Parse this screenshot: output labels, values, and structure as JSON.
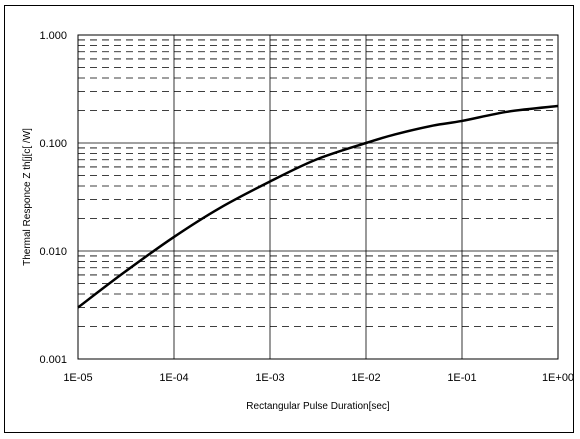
{
  "chart_data": {
    "type": "line",
    "title": "",
    "xlabel": "Rectangular Pulse Duration[sec]",
    "ylabel": "Thermal Responce Z th[j[c[   /W]",
    "xscale": "log",
    "yscale": "log",
    "xlim": [
      1e-05,
      1
    ],
    "ylim": [
      0.001,
      1
    ],
    "x_tick_labels": [
      "1E-05",
      "1E-04",
      "1E-03",
      "1E-02",
      "1E-01",
      "1E+00"
    ],
    "y_tick_labels": [
      "0.001",
      "0.010",
      "0.100",
      "1.000"
    ],
    "grid": "major solid, minor dashed",
    "series": [
      {
        "x": [
          1e-05,
          3e-05,
          0.0001,
          0.0003,
          0.001,
          0.003,
          0.01,
          0.02,
          0.05,
          0.1,
          0.3,
          1
        ],
        "y": [
          0.003,
          0.0063,
          0.0135,
          0.025,
          0.044,
          0.07,
          0.1,
          0.12,
          0.145,
          0.16,
          0.195,
          0.22
        ],
        "color": "#000000"
      }
    ]
  }
}
